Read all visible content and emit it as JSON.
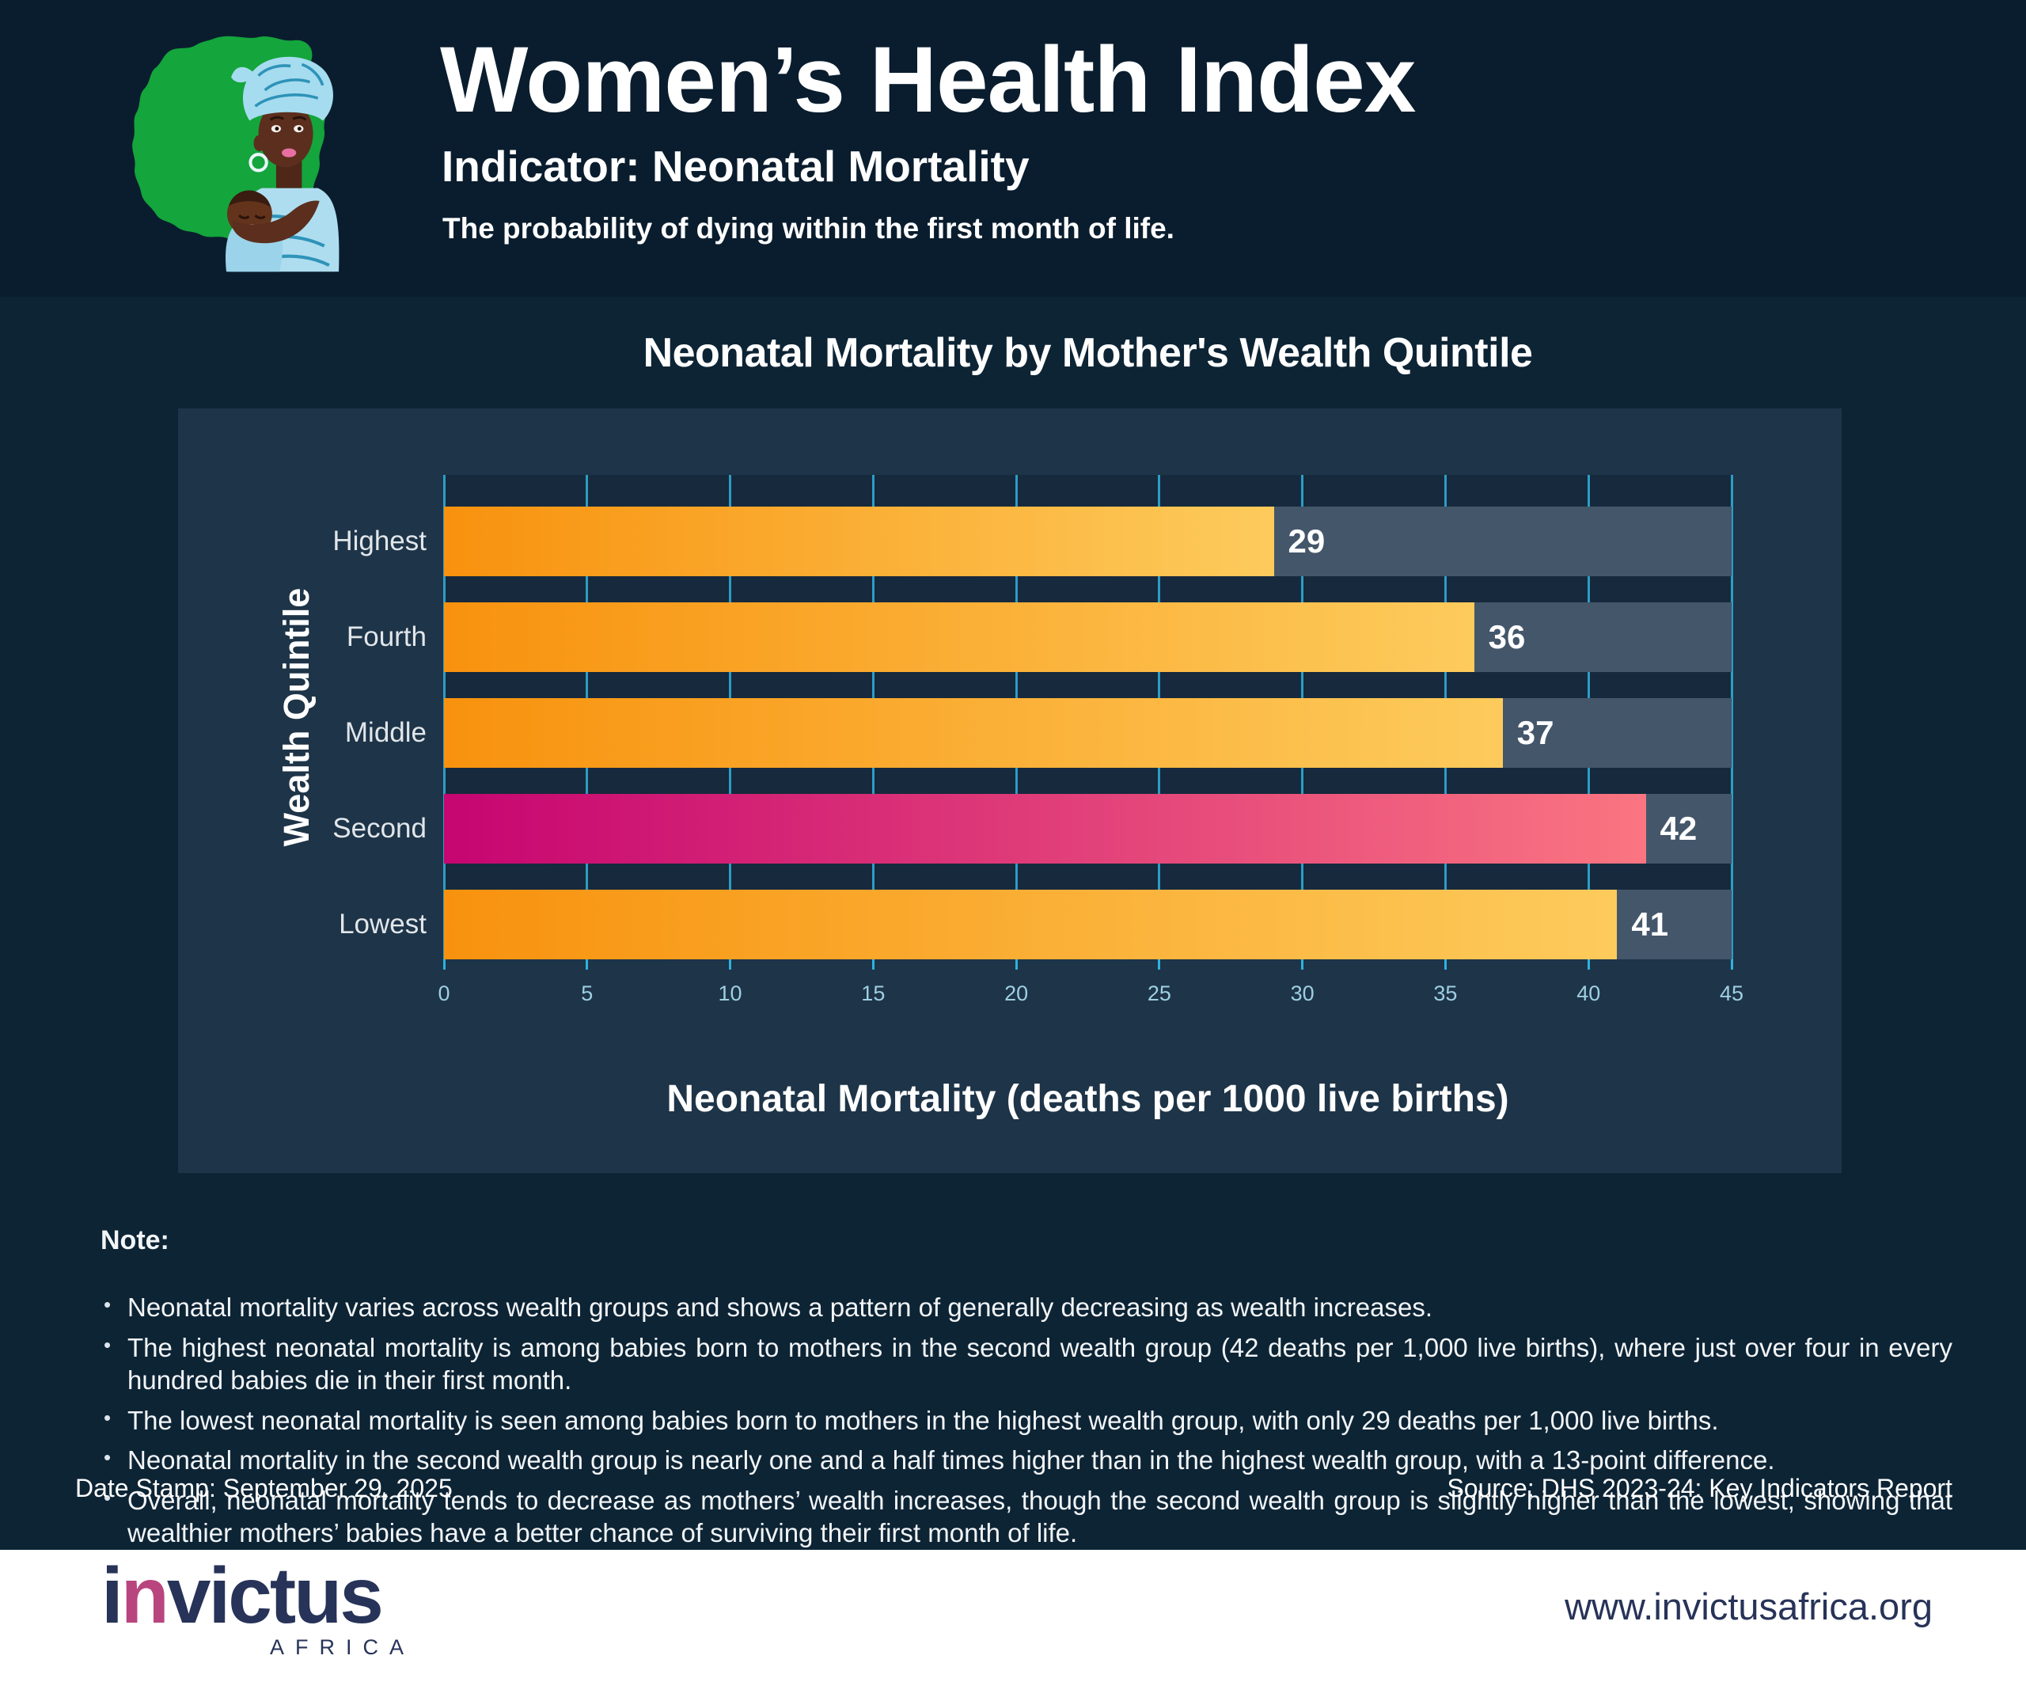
{
  "header": {
    "title": "Women’s Health Index",
    "subtitle": "Indicator: Neonatal Mortality",
    "tagline": "The probability of dying within the first month of life."
  },
  "chart_data": {
    "type": "bar",
    "orientation": "horizontal",
    "title": "Neonatal Mortality by Mother's Wealth Quintile",
    "xlabel": "Neonatal Mortality (deaths per 1000 live births)",
    "ylabel": "Wealth Quintile",
    "categories": [
      "Highest",
      "Fourth",
      "Middle",
      "Second",
      "Lowest"
    ],
    "values": [
      29,
      36,
      37,
      42,
      41
    ],
    "value_labels": [
      "29",
      "36",
      "37",
      "42",
      "41"
    ],
    "highlight_category": "Second",
    "xlim": [
      0,
      45
    ],
    "xticks": [
      0,
      5,
      10,
      15,
      20,
      25,
      30,
      35,
      40,
      45
    ],
    "grid": true,
    "legend": false,
    "colors": {
      "bar_gradient_from": "#F8920E",
      "bar_gradient_to": "#FDCB5C",
      "highlight_gradient_from": "#C60571",
      "highlight_gradient_to": "#FA7581",
      "track": "#44566A",
      "gridline": "#2FB2DE",
      "tick_label": "#9ECFE3",
      "category_label": "#E1E6EA",
      "value_label": "#FFFFFF"
    }
  },
  "notes": {
    "heading": "Note:",
    "bullets": [
      "Neonatal mortality varies across wealth groups and shows a pattern of generally decreasing as wealth increases.",
      "The highest neonatal mortality is among babies born to mothers in the second wealth group (42 deaths per 1,000 live births), where just over four in every hundred babies die in their first month.",
      "The lowest neonatal mortality is seen among babies born to mothers in the highest wealth group, with only 29 deaths per 1,000 live births.",
      "Neonatal mortality in the second wealth group is nearly one and a half times higher than in the highest wealth group, with a 13-point difference.",
      "Overall, neonatal mortality tends to decrease as mothers’ wealth increases, though the second wealth group is slightly higher than the lowest, showing that wealthier mothers’ babies have a better chance of surviving their first month of life."
    ]
  },
  "meta": {
    "date_stamp": "Date Stamp: September 29, 2025",
    "source": "Source: DHS 2023-24: Key Indicators Report"
  },
  "footer": {
    "brand_i": "i",
    "brand_n": "n",
    "brand_rest": "victus",
    "brand_sub": "AFRICA",
    "url": "www.invictusafrica.org"
  },
  "theme": {
    "header_bg": "#0A1D2E",
    "body_bg": "#0D2435",
    "panel_bg": "#1E3448",
    "plot_bg": "#17293C",
    "footer_bg": "#FFFFFF",
    "brand_navy": "#273358",
    "brand_pink": "#B9457F",
    "map_green": "#14A53C"
  }
}
